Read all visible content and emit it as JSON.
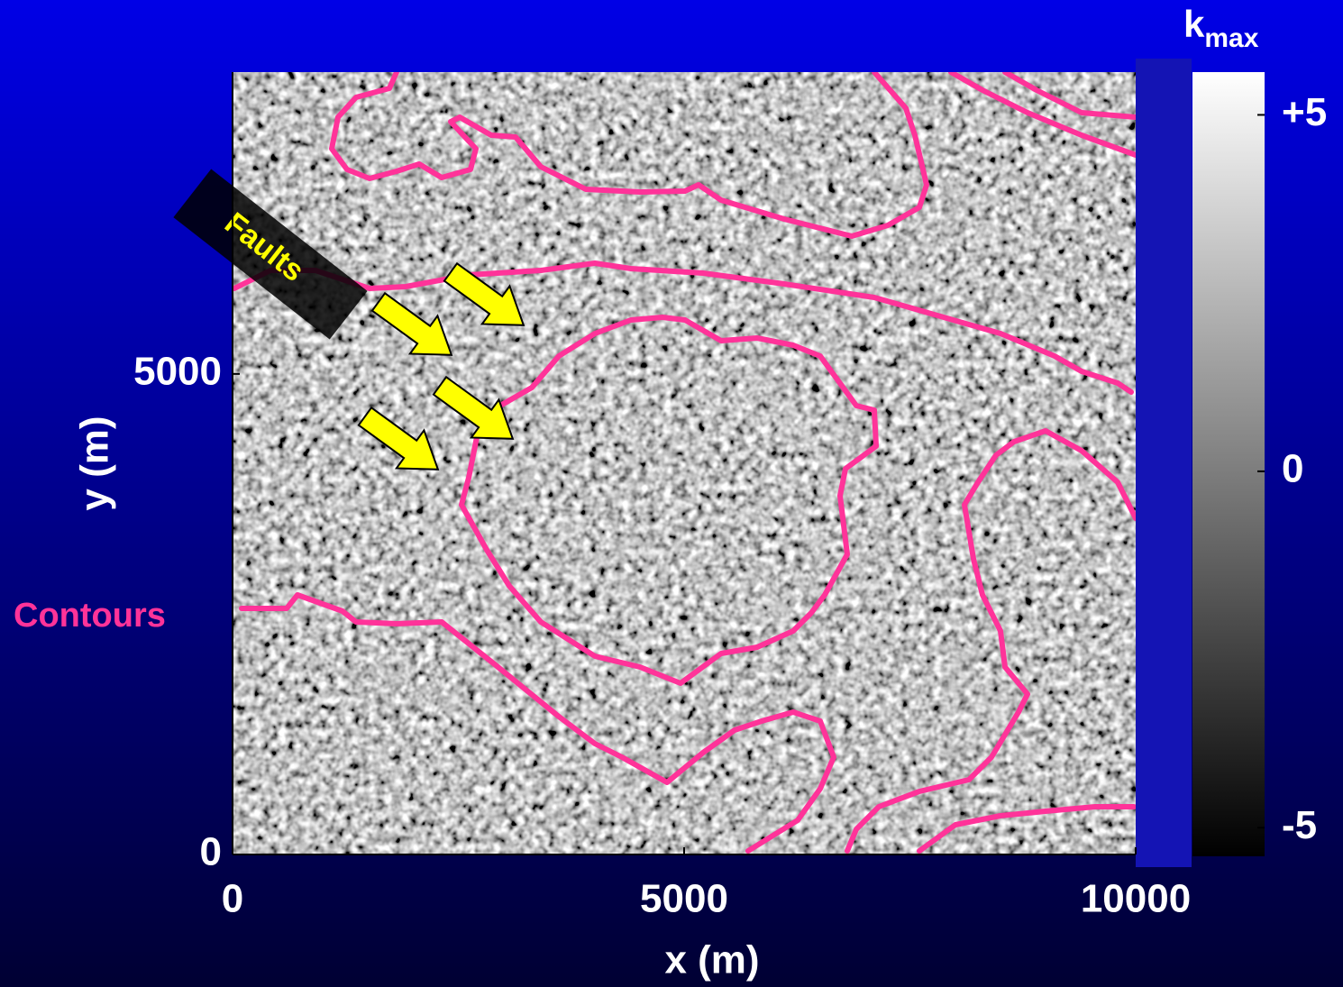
{
  "chart_data": {
    "type": "image",
    "xlabel": "x (m)",
    "ylabel": "y (m)",
    "xlim": [
      0,
      10000
    ],
    "ylim": [
      0,
      8140
    ],
    "xticks": [
      0,
      5000,
      10000
    ],
    "yticks": [
      0,
      5000
    ],
    "colorbar": {
      "title": "k",
      "title_sub": "max",
      "lim": [
        -5.4,
        5.6
      ],
      "ticks": [
        {
          "value": 5,
          "label": "+5"
        },
        0,
        -5
      ]
    },
    "annotations": {
      "faults": "Faults",
      "contours": "Contours"
    }
  }
}
